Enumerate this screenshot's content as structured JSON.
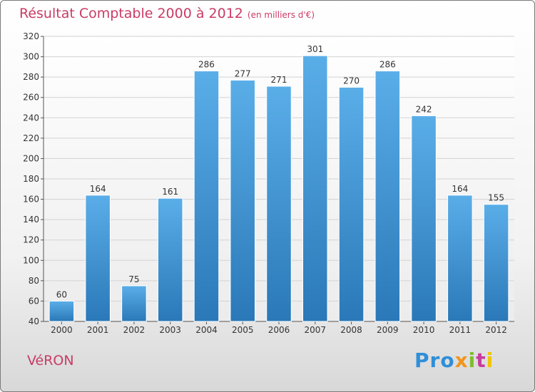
{
  "title": "Résultat Comptable 2000 à 2012",
  "subtitle": "(en milliers d'€)",
  "town": "VéRON",
  "brand": {
    "p1": "Pro",
    "x": "x",
    "i1": "i",
    "t": "t",
    "i2": "i"
  },
  "colors": {
    "bar_top": "#5aaee8",
    "bar_bottom": "#2a78b8",
    "title": "#c83c64",
    "grid": "#d2d2d2"
  },
  "chart_data": {
    "type": "bar",
    "title": "Résultat Comptable 2000 à 2012",
    "ylabel": "en milliers d'€",
    "categories": [
      "2000",
      "2001",
      "2002",
      "2003",
      "2004",
      "2005",
      "2006",
      "2007",
      "2008",
      "2009",
      "2010",
      "2011",
      "2012"
    ],
    "values": [
      60,
      164,
      75,
      161,
      286,
      277,
      271,
      301,
      270,
      286,
      242,
      164,
      155
    ],
    "ylim": [
      40,
      320
    ],
    "yticks": [
      40,
      60,
      80,
      100,
      120,
      140,
      160,
      180,
      200,
      220,
      240,
      260,
      280,
      300,
      320
    ],
    "grid": true
  }
}
